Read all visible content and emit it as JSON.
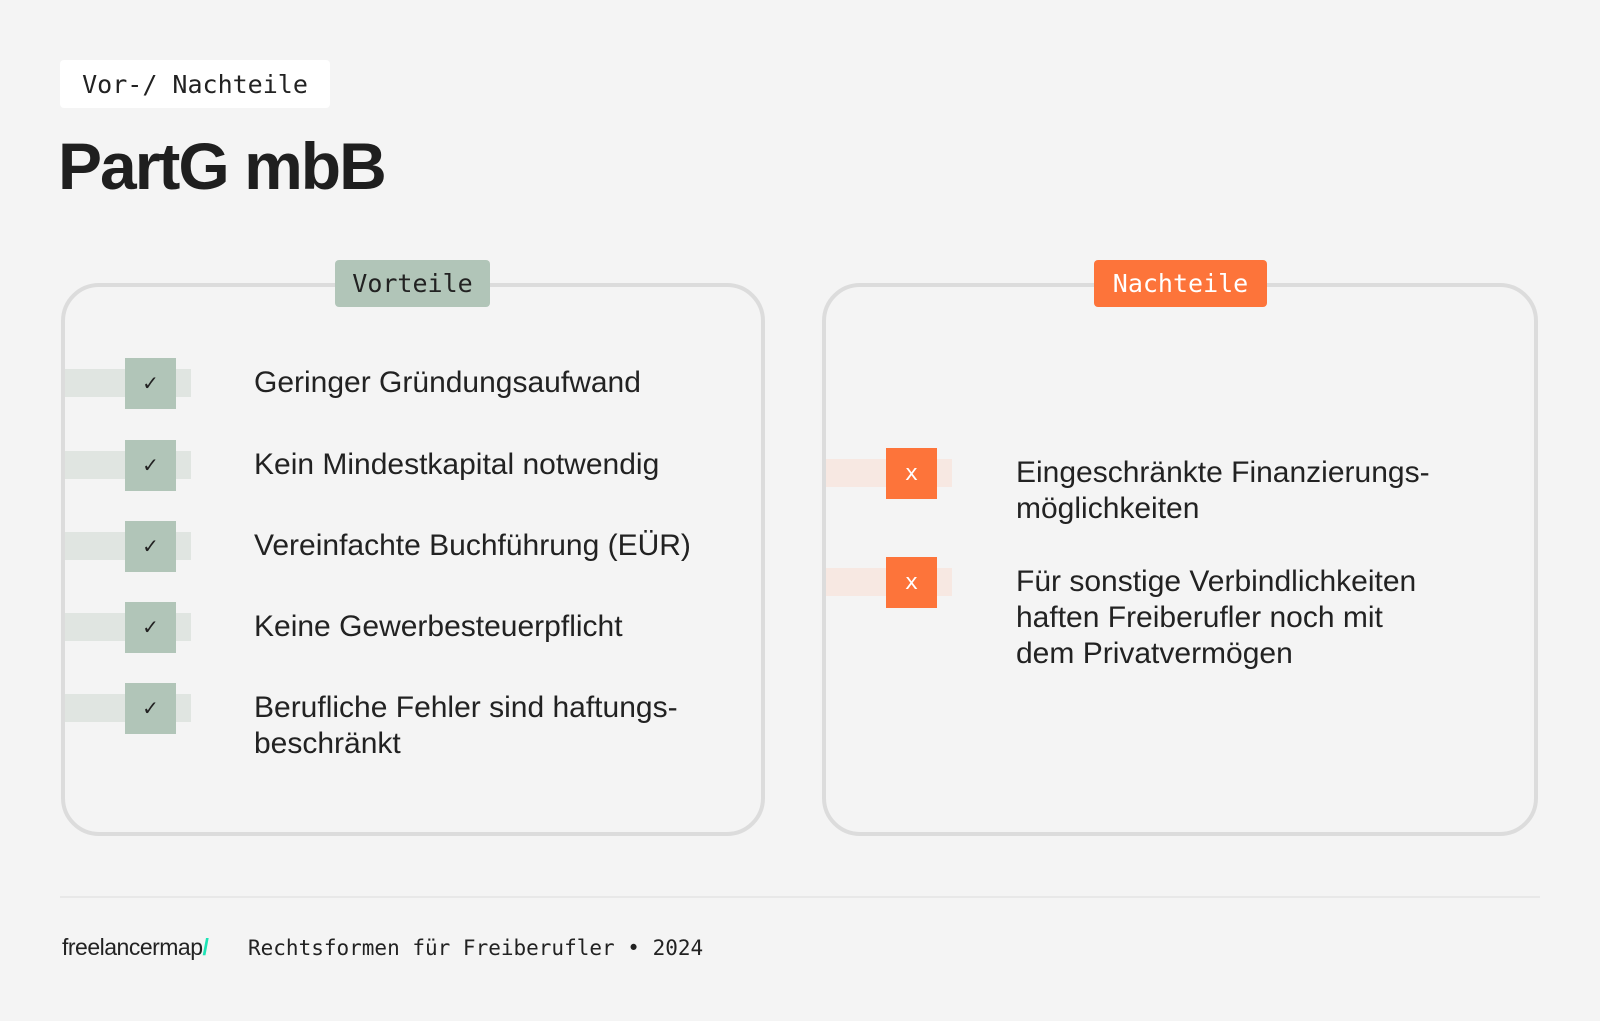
{
  "header": {
    "kicker": "Vor-/ Nachteile",
    "title": "PartG mbB"
  },
  "pros": {
    "label": "Vorteile",
    "icon": "check-icon",
    "icon_glyph": "✓",
    "color": "#b1c5b8",
    "items": [
      "Geringer Gründungsaufwand",
      "Kein Mindestkapital notwendig",
      "Vereinfachte Buchführung (EÜR)",
      "Keine Gewerbesteuerpflicht",
      "Berufliche Fehler sind haftungs-\nbeschränkt"
    ]
  },
  "cons": {
    "label": "Nachteile",
    "icon": "x-icon",
    "icon_glyph": "x",
    "color": "#fd743a",
    "items": [
      "Eingeschränkte Finanzierungs-\nmöglichkeiten",
      "Für sonstige Verbindlichkeiten\nhaften Freiberufler noch mit\ndem Privatvermögen"
    ]
  },
  "footer": {
    "logo": "freelancermap",
    "logo_slash": "/",
    "caption": "Rechtsformen für Freiberufler • 2024"
  }
}
